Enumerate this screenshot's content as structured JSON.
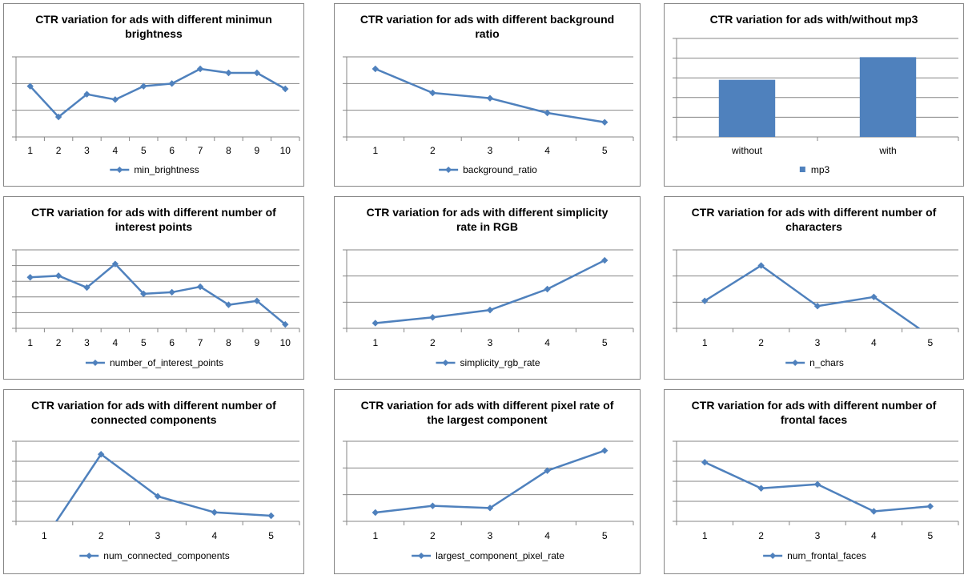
{
  "colors": {
    "series": "#4f81bd",
    "grid": "#868686",
    "axis": "#868686",
    "background": "#ffffff"
  },
  "chart_data": [
    {
      "type": "line",
      "title": "CTR variation for ads with different minimun brightness",
      "categories": [
        "1",
        "2",
        "3",
        "4",
        "5",
        "6",
        "7",
        "8",
        "9",
        "10"
      ],
      "series": [
        {
          "name": "min_brightness",
          "values": [
            1.9,
            0.75,
            1.6,
            1.4,
            1.9,
            2.0,
            2.55,
            2.4,
            2.4,
            1.8
          ]
        }
      ],
      "ylim": [
        0,
        3
      ],
      "grid": true,
      "legend": "bottom",
      "y_tick_labels": false
    },
    {
      "type": "line",
      "title": "CTR variation for ads with different background ratio",
      "categories": [
        "1",
        "2",
        "3",
        "4",
        "5"
      ],
      "series": [
        {
          "name": "background_ratio",
          "values": [
            2.55,
            1.65,
            1.45,
            0.9,
            0.55
          ]
        }
      ],
      "ylim": [
        0,
        3
      ],
      "grid": true,
      "legend": "bottom",
      "y_tick_labels": false
    },
    {
      "type": "bar",
      "title": "CTR variation for ads with/without mp3",
      "categories": [
        "without",
        "with"
      ],
      "series": [
        {
          "name": "mp3",
          "values": [
            2.9,
            4.05
          ]
        }
      ],
      "ylim": [
        0,
        5
      ],
      "grid": true,
      "legend": "bottom",
      "y_tick_labels": false
    },
    {
      "type": "line",
      "title": "CTR variation for ads with different number of interest points",
      "categories": [
        "1",
        "2",
        "3",
        "4",
        "5",
        "6",
        "7",
        "8",
        "9",
        "10"
      ],
      "series": [
        {
          "name": "number_of_interest_points",
          "values": [
            3.25,
            3.35,
            2.6,
            4.1,
            2.2,
            2.3,
            2.65,
            1.5,
            1.75,
            0.25
          ]
        }
      ],
      "ylim": [
        0,
        5
      ],
      "grid": true,
      "legend": "bottom",
      "y_tick_labels": false
    },
    {
      "type": "line",
      "title": "CTR variation for ads with different simplicity rate in RGB",
      "categories": [
        "1",
        "2",
        "3",
        "4",
        "5"
      ],
      "series": [
        {
          "name": "simplicity_rgb_rate",
          "values": [
            0.2,
            0.42,
            0.7,
            1.5,
            2.6
          ]
        }
      ],
      "ylim": [
        0,
        3
      ],
      "grid": true,
      "legend": "bottom",
      "y_tick_labels": false
    },
    {
      "type": "line",
      "title": "CTR variation for ads with different number of characters",
      "categories": [
        "1",
        "2",
        "3",
        "4",
        "5"
      ],
      "series": [
        {
          "name": "n_chars",
          "values": [
            1.05,
            2.4,
            0.85,
            1.2,
            -0.3
          ]
        }
      ],
      "ylim": [
        0,
        3
      ],
      "grid": true,
      "legend": "bottom",
      "y_tick_labels": false
    },
    {
      "type": "line",
      "title": "CTR variation for ads with different number of connected components",
      "categories": [
        "1",
        "2",
        "3",
        "4",
        "5"
      ],
      "series": [
        {
          "name": "num_connected_components",
          "values": [
            -0.9,
            3.35,
            1.25,
            0.45,
            0.28
          ]
        }
      ],
      "ylim": [
        0,
        4
      ],
      "grid": true,
      "legend": "bottom",
      "y_tick_labels": false
    },
    {
      "type": "line",
      "title": "CTR variation for ads with different pixel rate of the largest component",
      "categories": [
        "1",
        "2",
        "3",
        "4",
        "5"
      ],
      "series": [
        {
          "name": "largest_component_pixel_rate",
          "values": [
            0.33,
            0.58,
            0.5,
            1.9,
            2.65
          ]
        }
      ],
      "ylim": [
        0,
        3
      ],
      "grid": true,
      "legend": "bottom",
      "y_tick_labels": false
    },
    {
      "type": "line",
      "title": "CTR variation for ads with different number of frontal faces",
      "categories": [
        "1",
        "2",
        "3",
        "4",
        "5"
      ],
      "series": [
        {
          "name": "num_frontal_faces",
          "values": [
            2.95,
            1.65,
            1.85,
            0.5,
            0.75
          ]
        }
      ],
      "ylim": [
        0,
        4
      ],
      "grid": true,
      "legend": "bottom",
      "y_tick_labels": false
    }
  ]
}
